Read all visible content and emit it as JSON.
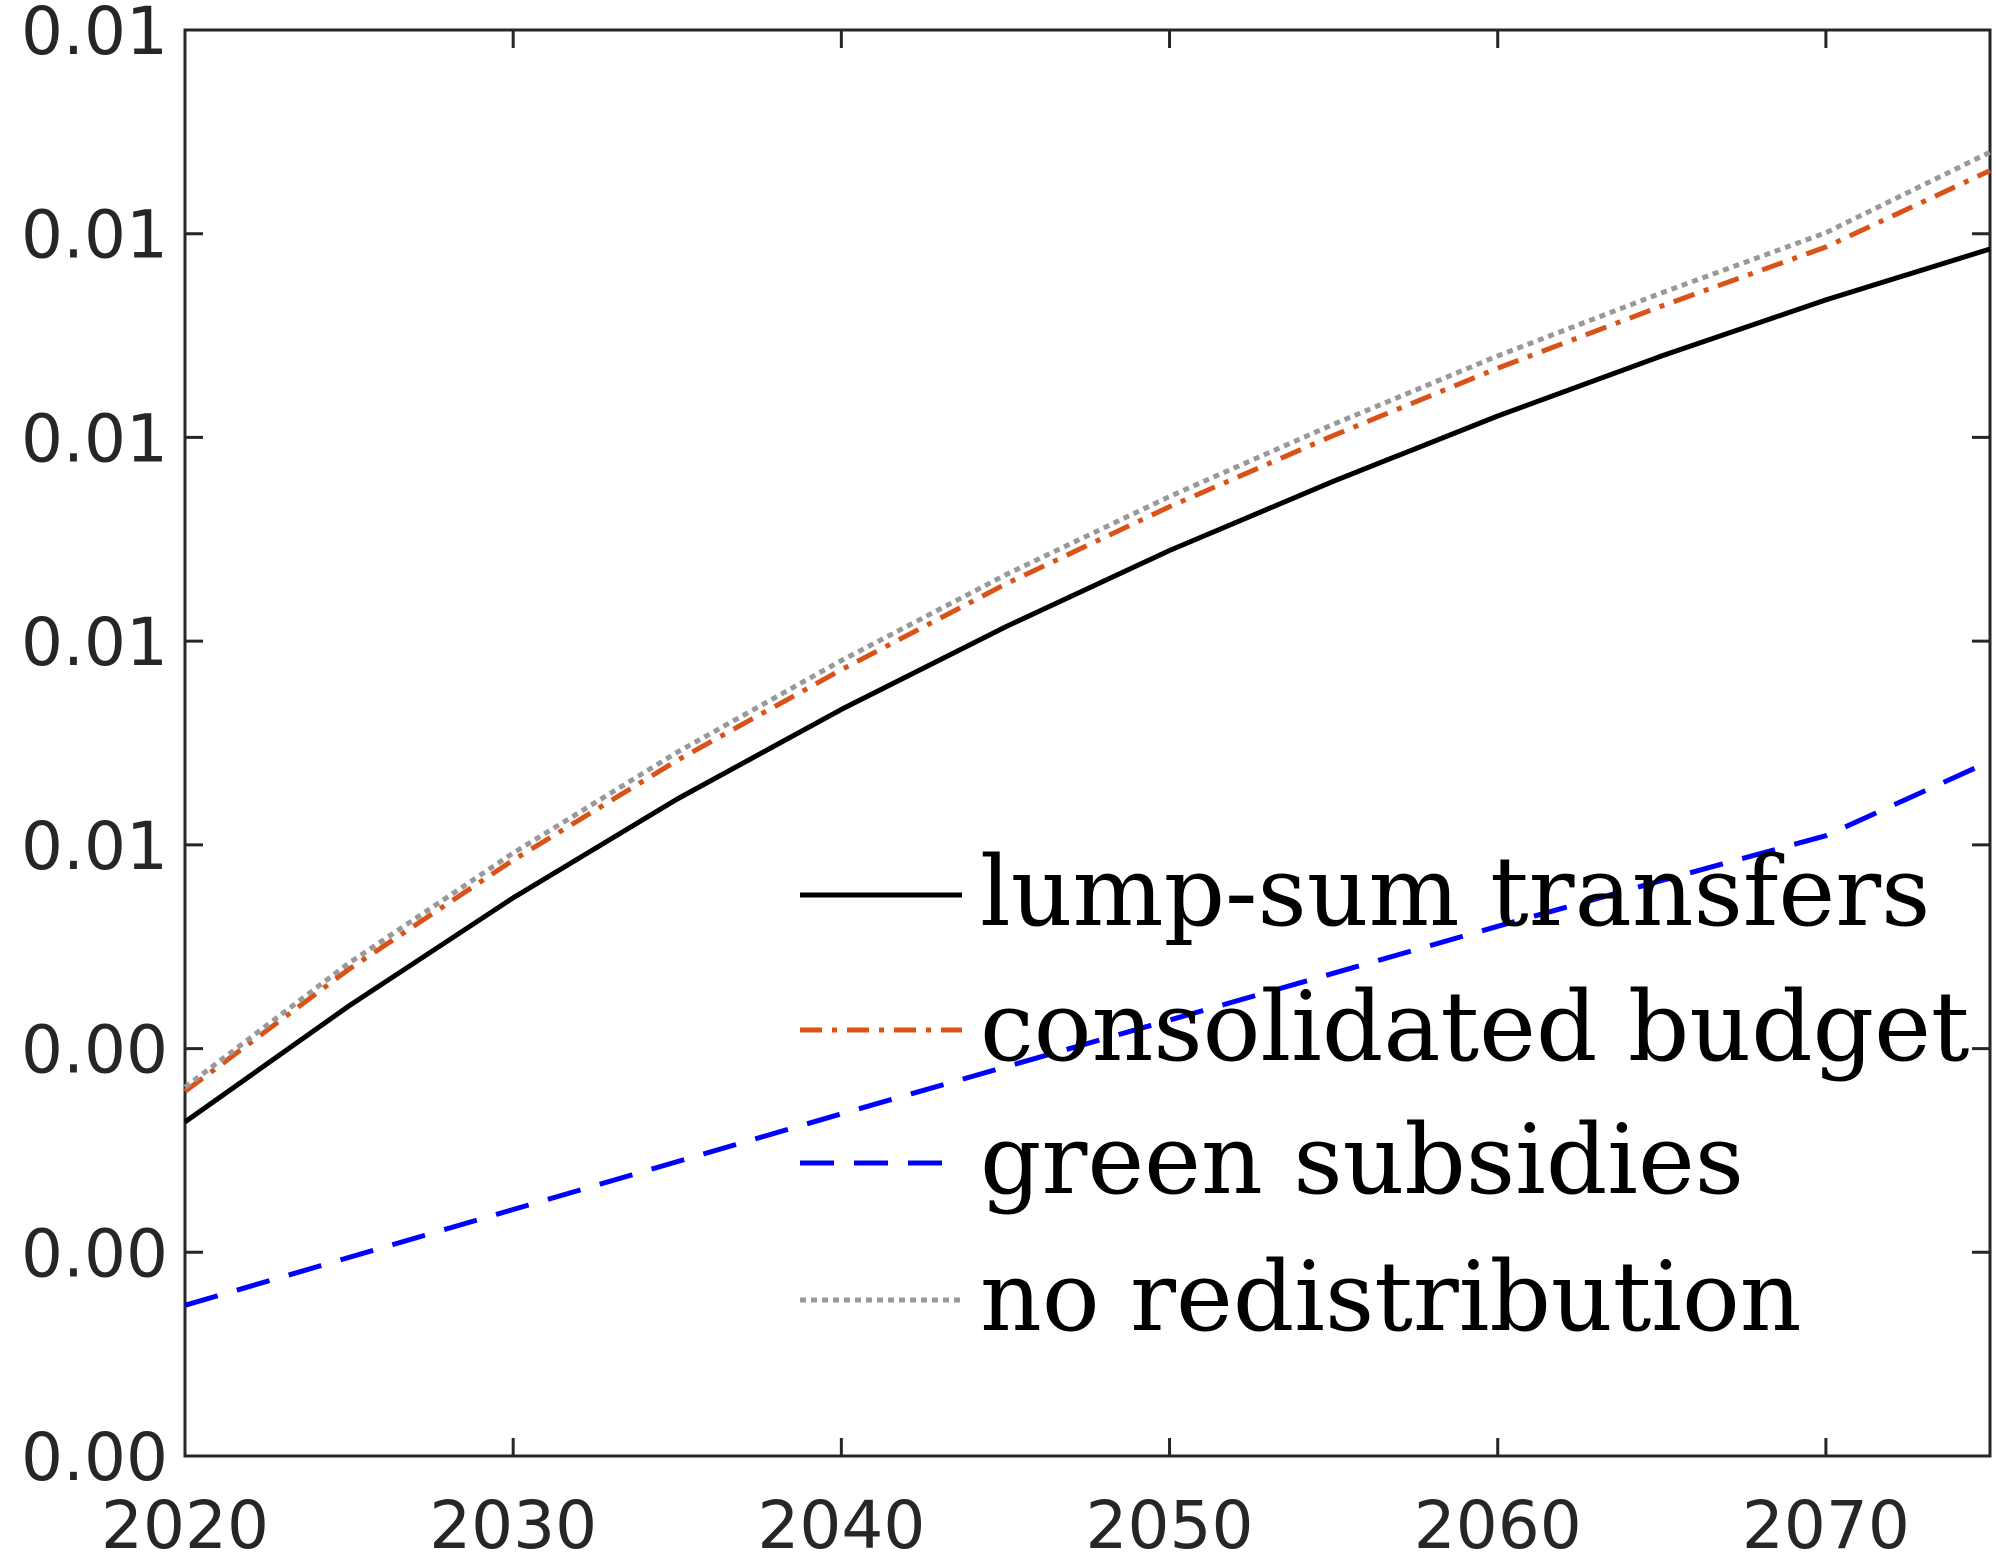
{
  "chart_data": {
    "type": "line",
    "title": "",
    "xlabel": "",
    "ylabel": "",
    "xlim": [
      2020,
      2075
    ],
    "ylim": [
      0,
      0.014
    ],
    "x_ticks": [
      2020,
      2030,
      2040,
      2050,
      2060,
      2070
    ],
    "x_tick_labels": [
      "2020",
      "2030",
      "2040",
      "2050",
      "2060",
      "2070"
    ],
    "y_ticks": [
      0,
      0.002,
      0.004,
      0.006,
      0.008,
      0.01,
      0.012,
      0.014
    ],
    "y_tick_labels": [
      "0.00",
      "0.00",
      "0.00",
      "0.01",
      "0.01",
      "0.01",
      "0.01",
      "0.01"
    ],
    "grid": false,
    "legend_position": "bottom-right",
    "x": [
      2020,
      2025,
      2030,
      2035,
      2040,
      2045,
      2050,
      2055,
      2060,
      2065,
      2070,
      2075
    ],
    "series": [
      {
        "name": "lump-sum transfers",
        "color": "#000000",
        "dash": "solid",
        "values": [
          0.00328,
          0.00442,
          0.00548,
          0.00645,
          0.00733,
          0.00814,
          0.00889,
          0.00957,
          0.01021,
          0.0108,
          0.01135,
          0.01185
        ]
      },
      {
        "name": "consolidated budget",
        "color": "#D95319",
        "dash": "dashdot",
        "values": [
          0.00358,
          0.00478,
          0.00585,
          0.00683,
          0.00772,
          0.00856,
          0.00932,
          0.01002,
          0.01068,
          0.01129,
          0.01187,
          0.01262
        ]
      },
      {
        "name": "green subsidies",
        "color": "#0000FF",
        "dash": "dashed",
        "values": [
          0.00148,
          0.00195,
          0.00242,
          0.00289,
          0.00336,
          0.00382,
          0.00428,
          0.00474,
          0.0052,
          0.00565,
          0.00609,
          0.00682
        ]
      },
      {
        "name": "no redistribution",
        "color": "#999999",
        "dash": "dotted",
        "values": [
          0.00362,
          0.00484,
          0.00592,
          0.00691,
          0.00781,
          0.00865,
          0.00942,
          0.01013,
          0.0108,
          0.01142,
          0.01201,
          0.0128
        ]
      }
    ]
  }
}
